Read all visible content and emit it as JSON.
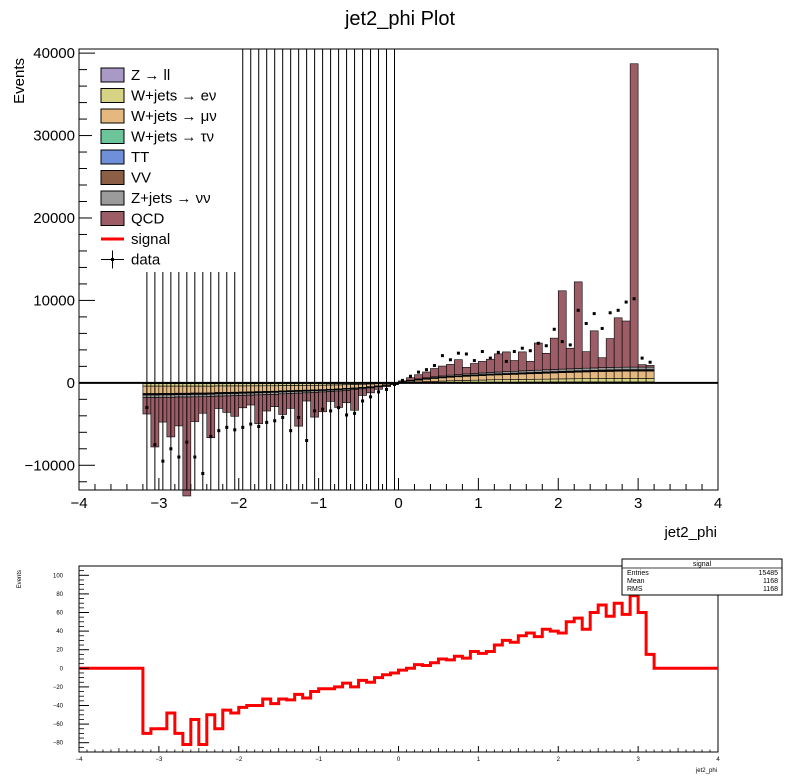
{
  "chart_data": [
    {
      "type": "bar",
      "title": "jet2_phi Plot",
      "xlabel": "jet2_phi",
      "ylabel": "Events",
      "xlim": [
        -4,
        4
      ],
      "ylim": [
        -13000,
        40500
      ],
      "x_ticks": [
        "−4",
        "−3",
        "−2",
        "−1",
        "0",
        "1",
        "2",
        "3",
        "4"
      ],
      "y_ticks": [
        "−10000",
        "0",
        "10000",
        "20000",
        "30000",
        "40000"
      ],
      "legend_position": "top-left",
      "legend": [
        {
          "label": "Z → ll",
          "color": "#a899c6"
        },
        {
          "label": "W+jets → eν",
          "color": "#d6d484"
        },
        {
          "label": "W+jets → μν",
          "color": "#e4b87e"
        },
        {
          "label": "W+jets → τν",
          "color": "#6cc49a"
        },
        {
          "label": "TT",
          "color": "#6f8fd8"
        },
        {
          "label": "VV",
          "color": "#8b5e45"
        },
        {
          "label": "Z+jets → νν",
          "color": "#9b9b9b"
        },
        {
          "label": "QCD",
          "color": "#9c5d66"
        },
        {
          "label": "signal",
          "color": "#ff0000"
        },
        {
          "label": "data",
          "color": "#000000"
        }
      ],
      "stack_description": "stacked backgrounds, QCD on top; positive for phi>0, negative for phi<0",
      "x_bins": [
        -3.15,
        -3.05,
        -2.95,
        -2.85,
        -2.75,
        -2.65,
        -2.55,
        -2.45,
        -2.35,
        -2.25,
        -2.15,
        -2.05,
        -1.95,
        -1.85,
        -1.75,
        -1.65,
        -1.55,
        -1.45,
        -1.35,
        -1.25,
        -1.15,
        -1.05,
        -0.95,
        -0.85,
        -0.75,
        -0.65,
        -0.55,
        -0.45,
        -0.35,
        -0.25,
        -0.15,
        -0.05,
        0.05,
        0.15,
        0.25,
        0.35,
        0.45,
        0.55,
        0.65,
        0.75,
        0.85,
        0.95,
        1.05,
        1.15,
        1.25,
        1.35,
        1.45,
        1.55,
        1.65,
        1.75,
        1.85,
        1.95,
        2.05,
        2.15,
        2.25,
        2.35,
        2.45,
        2.55,
        2.65,
        2.75,
        2.85,
        2.95,
        3.05,
        3.15
      ],
      "series": [
        {
          "name": "Z → ll",
          "values": [
            -100,
            -100,
            -100,
            -100,
            -100,
            -100,
            -100,
            -100,
            -100,
            -100,
            -100,
            -100,
            -100,
            -100,
            -100,
            -100,
            -100,
            -80,
            -80,
            -80,
            -80,
            -80,
            -80,
            -70,
            -70,
            -60,
            -60,
            -50,
            -40,
            -30,
            -20,
            -10,
            10,
            20,
            30,
            40,
            50,
            60,
            70,
            80,
            80,
            80,
            80,
            90,
            90,
            90,
            90,
            100,
            100,
            100,
            100,
            110,
            110,
            110,
            110,
            110,
            110,
            110,
            110,
            110,
            110,
            110,
            110,
            110
          ]
        },
        {
          "name": "W+jets → eν",
          "values": [
            -300,
            -300,
            -300,
            -300,
            -300,
            -300,
            -300,
            -300,
            -300,
            -280,
            -280,
            -280,
            -280,
            -270,
            -270,
            -260,
            -260,
            -250,
            -250,
            -240,
            -230,
            -220,
            -210,
            -200,
            -190,
            -170,
            -150,
            -130,
            -110,
            -80,
            -50,
            -20,
            20,
            50,
            80,
            110,
            140,
            160,
            180,
            200,
            220,
            240,
            260,
            280,
            290,
            300,
            310,
            320,
            330,
            340,
            350,
            360,
            370,
            380,
            390,
            400,
            400,
            410,
            410,
            420,
            420,
            420,
            420,
            420
          ]
        },
        {
          "name": "W+jets → μν",
          "values": [
            -900,
            -900,
            -880,
            -880,
            -860,
            -860,
            -840,
            -840,
            -820,
            -800,
            -780,
            -760,
            -740,
            -720,
            -700,
            -680,
            -660,
            -640,
            -620,
            -600,
            -580,
            -560,
            -540,
            -510,
            -480,
            -450,
            -410,
            -370,
            -320,
            -260,
            -180,
            -80,
            80,
            180,
            260,
            320,
            370,
            410,
            450,
            480,
            510,
            540,
            560,
            580,
            600,
            620,
            640,
            660,
            680,
            700,
            720,
            740,
            760,
            780,
            800,
            820,
            840,
            860,
            870,
            880,
            890,
            900,
            900,
            900
          ]
        },
        {
          "name": "W+jets → τν",
          "values": [
            -60,
            -60,
            -60,
            -60,
            -60,
            -60,
            -55,
            -55,
            -55,
            -55,
            -50,
            -50,
            -50,
            -50,
            -45,
            -45,
            -45,
            -45,
            -40,
            -40,
            -40,
            -35,
            -35,
            -35,
            -30,
            -30,
            -25,
            -25,
            -20,
            -15,
            -10,
            -5,
            5,
            10,
            15,
            20,
            25,
            25,
            30,
            30,
            35,
            35,
            35,
            40,
            40,
            40,
            45,
            45,
            45,
            45,
            50,
            50,
            50,
            50,
            55,
            55,
            55,
            55,
            60,
            60,
            60,
            60,
            60,
            60
          ]
        },
        {
          "name": "TT",
          "values": [
            -80,
            -80,
            -80,
            -80,
            -75,
            -75,
            -75,
            -75,
            -70,
            -70,
            -70,
            -70,
            -65,
            -65,
            -65,
            -60,
            -60,
            -60,
            -55,
            -55,
            -50,
            -50,
            -45,
            -45,
            -40,
            -40,
            -35,
            -30,
            -25,
            -20,
            -15,
            -5,
            5,
            15,
            20,
            25,
            30,
            35,
            40,
            40,
            45,
            45,
            50,
            50,
            55,
            55,
            60,
            60,
            65,
            65,
            70,
            70,
            70,
            75,
            75,
            75,
            75,
            80,
            80,
            80,
            80,
            80,
            80,
            80
          ]
        },
        {
          "name": "VV",
          "values": [
            -40,
            -40,
            -40,
            -40,
            -40,
            -40,
            -38,
            -38,
            -38,
            -36,
            -36,
            -36,
            -34,
            -34,
            -32,
            -32,
            -30,
            -30,
            -28,
            -28,
            -26,
            -24,
            -22,
            -20,
            -18,
            -16,
            -14,
            -12,
            -10,
            -8,
            -6,
            -3,
            3,
            6,
            8,
            10,
            12,
            14,
            16,
            18,
            20,
            22,
            24,
            26,
            28,
            28,
            30,
            30,
            32,
            32,
            34,
            34,
            36,
            36,
            38,
            38,
            38,
            40,
            40,
            40,
            40,
            40,
            40,
            40
          ]
        },
        {
          "name": "Z+jets → νν",
          "values": [
            -300,
            -300,
            -300,
            -300,
            -290,
            -290,
            -290,
            -280,
            -280,
            -270,
            -270,
            -260,
            -260,
            -250,
            -250,
            -240,
            -240,
            -230,
            -220,
            -210,
            -200,
            -190,
            -180,
            -170,
            -160,
            -150,
            -130,
            -110,
            -90,
            -70,
            -40,
            -15,
            15,
            40,
            70,
            90,
            110,
            130,
            150,
            160,
            170,
            180,
            190,
            200,
            210,
            220,
            230,
            240,
            250,
            250,
            260,
            260,
            270,
            270,
            280,
            280,
            290,
            290,
            300,
            300,
            300,
            300,
            300,
            300
          ]
        },
        {
          "name": "QCD",
          "values": [
            -2000,
            -6000,
            -3000,
            -4800,
            -3500,
            -12000,
            -3000,
            -2000,
            -5000,
            -1500,
            -2000,
            -2500,
            -1500,
            -1200,
            -3500,
            -2000,
            -1500,
            -2500,
            -1800,
            -4000,
            -1000,
            -3000,
            -2400,
            -1200,
            -2000,
            -1500,
            -2500,
            -800,
            -600,
            -300,
            -150,
            -50,
            100,
            300,
            500,
            700,
            1000,
            1200,
            1300,
            1800,
            800,
            1200,
            1400,
            1600,
            2200,
            2400,
            1300,
            2300,
            1100,
            3300,
            2000,
            3800,
            9500,
            2500,
            10500,
            2000,
            4500,
            1200,
            3500,
            6000,
            5600,
            36800,
            300,
            200
          ]
        }
      ],
      "data_points": [
        -3000,
        -7500,
        -9500,
        -8000,
        -9000,
        -7200,
        -9000,
        -11000,
        -6500,
        -5800,
        -5400,
        -5700,
        -5400,
        -5000,
        -5300,
        -4800,
        -4600,
        -4200,
        -5800,
        -4200,
        -7000,
        -3400,
        -3200,
        -3400,
        -3000,
        -3900,
        -3700,
        -2200,
        -1700,
        -1100,
        -800,
        -200,
        300,
        800,
        1300,
        1600,
        2100,
        3300,
        2800,
        3600,
        3500,
        2700,
        3800,
        3000,
        3700,
        2600,
        3800,
        4200,
        3900,
        4800,
        4500,
        6500,
        5000,
        4600,
        8800,
        7200,
        8400,
        6600,
        8500,
        8800,
        9800,
        10200,
        3000,
        2500
      ]
    },
    {
      "type": "line",
      "title": "",
      "xlabel": "jet2_phi",
      "ylabel": "Events",
      "xlim": [
        -4,
        4
      ],
      "ylim": [
        -90,
        110
      ],
      "x_ticks": [
        "−4",
        "−3",
        "−2",
        "−1",
        "0",
        "1",
        "2",
        "3",
        "4"
      ],
      "y_ticks": [
        "−80",
        "−60",
        "−40",
        "−20",
        "0",
        "20",
        "40",
        "60",
        "80",
        "100"
      ],
      "series": [
        {
          "name": "signal",
          "color": "#ff0000",
          "x": [
            -3.15,
            -3.05,
            -2.95,
            -2.85,
            -2.75,
            -2.65,
            -2.55,
            -2.45,
            -2.35,
            -2.25,
            -2.15,
            -2.05,
            -1.95,
            -1.85,
            -1.75,
            -1.65,
            -1.55,
            -1.45,
            -1.35,
            -1.25,
            -1.15,
            -1.05,
            -0.95,
            -0.85,
            -0.75,
            -0.65,
            -0.55,
            -0.45,
            -0.35,
            -0.25,
            -0.15,
            -0.05,
            0.05,
            0.15,
            0.25,
            0.35,
            0.45,
            0.55,
            0.65,
            0.75,
            0.85,
            0.95,
            1.05,
            1.15,
            1.25,
            1.35,
            1.45,
            1.55,
            1.65,
            1.75,
            1.85,
            1.95,
            2.05,
            2.15,
            2.25,
            2.35,
            2.45,
            2.55,
            2.65,
            2.75,
            2.85,
            2.95,
            3.05,
            3.15
          ],
          "values": [
            -70,
            -65,
            -65,
            -48,
            -70,
            -82,
            -55,
            -82,
            -50,
            -65,
            -45,
            -48,
            -42,
            -40,
            -40,
            -33,
            -38,
            -33,
            -34,
            -28,
            -32,
            -25,
            -22,
            -22,
            -20,
            -16,
            -20,
            -13,
            -15,
            -10,
            -7,
            -5,
            -2,
            0,
            4,
            3,
            6,
            10,
            9,
            13,
            11,
            18,
            16,
            18,
            25,
            30,
            28,
            35,
            38,
            34,
            42,
            40,
            38,
            50,
            54,
            42,
            60,
            68,
            56,
            70,
            58,
            78,
            60,
            15
          ]
        }
      ],
      "stats_box": {
        "title": "signal",
        "rows": [
          {
            "label": "Entries",
            "value": "15485"
          },
          {
            "label": "Mean",
            "value": "1168"
          },
          {
            "label": "RMS",
            "value": "1168"
          }
        ]
      }
    }
  ]
}
